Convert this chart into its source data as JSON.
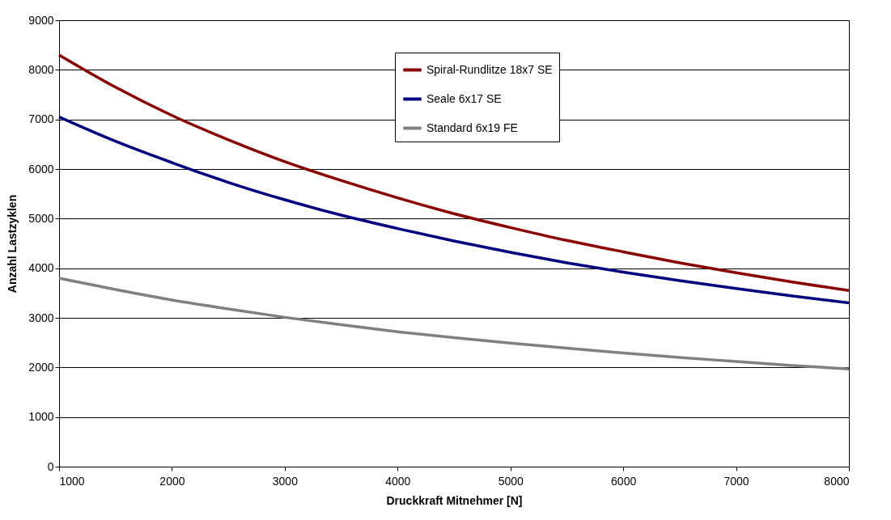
{
  "chart_data": {
    "type": "line",
    "xlabel": "Druckkraft Mitnehmer [N]",
    "ylabel": "Anzahl Lastzyklen",
    "x": [
      1000,
      1500,
      2000,
      2500,
      3000,
      3500,
      4000,
      4500,
      5000,
      5500,
      6000,
      6500,
      7000,
      7500,
      8000
    ],
    "series": [
      {
        "name": "Spiral-Rundlitze 18x7 SE",
        "color": "#8b0000",
        "values": [
          8300,
          7650,
          7080,
          6590,
          6150,
          5770,
          5420,
          5100,
          4820,
          4560,
          4330,
          4110,
          3910,
          3720,
          3550
        ]
      },
      {
        "name": "Seale 6x17 SE",
        "color": "#000080",
        "values": [
          7050,
          6560,
          6130,
          5730,
          5380,
          5070,
          4800,
          4550,
          4320,
          4110,
          3920,
          3750,
          3590,
          3440,
          3300
        ]
      },
      {
        "name": "Standard 6x19 FE",
        "color": "#808080",
        "values": [
          3800,
          3570,
          3360,
          3180,
          3010,
          2860,
          2720,
          2600,
          2490,
          2390,
          2290,
          2200,
          2120,
          2040,
          1970
        ]
      }
    ],
    "xlim": [
      1000,
      8000
    ],
    "xticks": [
      1000,
      2000,
      3000,
      4000,
      5000,
      6000,
      7000,
      8000
    ],
    "ylim": [
      0,
      9000
    ],
    "yticks": [
      0,
      1000,
      2000,
      3000,
      4000,
      5000,
      6000,
      7000,
      8000,
      9000
    ],
    "grid": "y",
    "legend": "top",
    "marker": "none",
    "line_style": "solid"
  }
}
